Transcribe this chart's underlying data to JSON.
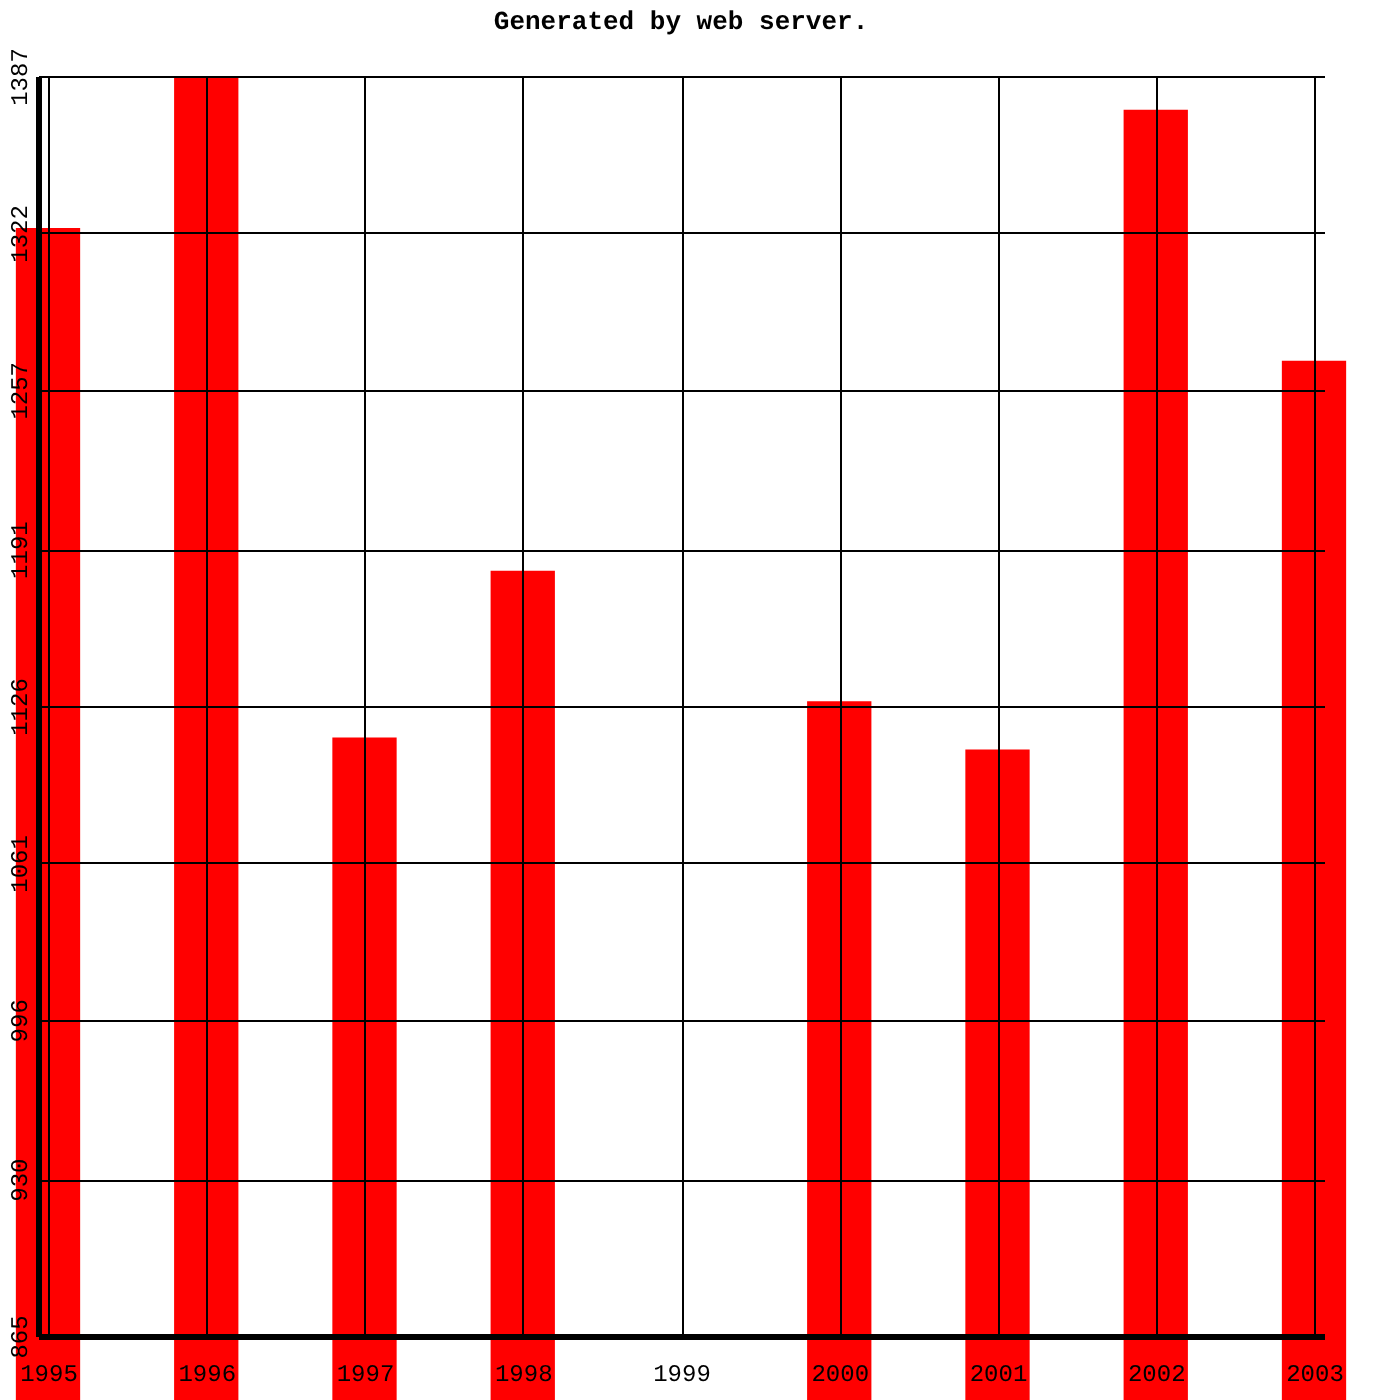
{
  "chart_data": {
    "type": "bar",
    "title": "Generated by web server.",
    "x": [
      1995,
      1996,
      1997,
      1998,
      1999,
      2000,
      2001,
      2002,
      2003
    ],
    "values": [
      1324,
      1387,
      1113,
      1182,
      null,
      1128,
      1108,
      1373,
      1269
    ],
    "color": "#ff0000",
    "xlim": [
      1995,
      2003
    ],
    "xticks": [
      1995,
      1996,
      1997,
      1998,
      1999,
      2000,
      2001,
      2002,
      2003
    ],
    "ylim": [
      865,
      1387
    ],
    "yticks": [
      865,
      930,
      996,
      1061,
      1126,
      1191,
      1257,
      1322,
      1387
    ],
    "grid": true
  }
}
